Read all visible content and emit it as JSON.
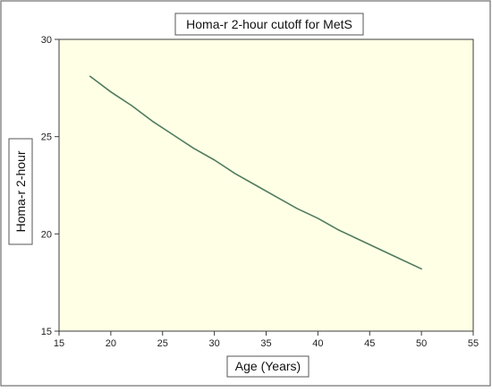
{
  "chart_data": {
    "type": "line",
    "title": "Homa-r 2-hour cutoff for MetS",
    "xlabel": "Age (Years)",
    "ylabel": "Homa-r 2-hour",
    "xlim": [
      15,
      55
    ],
    "ylim": [
      15,
      30
    ],
    "x_ticks": [
      15,
      20,
      25,
      30,
      35,
      40,
      45,
      50,
      55
    ],
    "y_ticks": [
      15,
      20,
      25,
      30
    ],
    "grid": false,
    "legend": "none",
    "series": [
      {
        "color": "#4f7c5c",
        "x": [
          18,
          20,
          22,
          24,
          26,
          28,
          30,
          32,
          34,
          36,
          38,
          40,
          42,
          44,
          46,
          48,
          50
        ],
        "y": [
          28.1,
          27.3,
          26.6,
          25.8,
          25.1,
          24.4,
          23.8,
          23.1,
          22.5,
          21.9,
          21.3,
          20.8,
          20.2,
          19.7,
          19.2,
          18.7,
          18.2
        ]
      }
    ]
  }
}
